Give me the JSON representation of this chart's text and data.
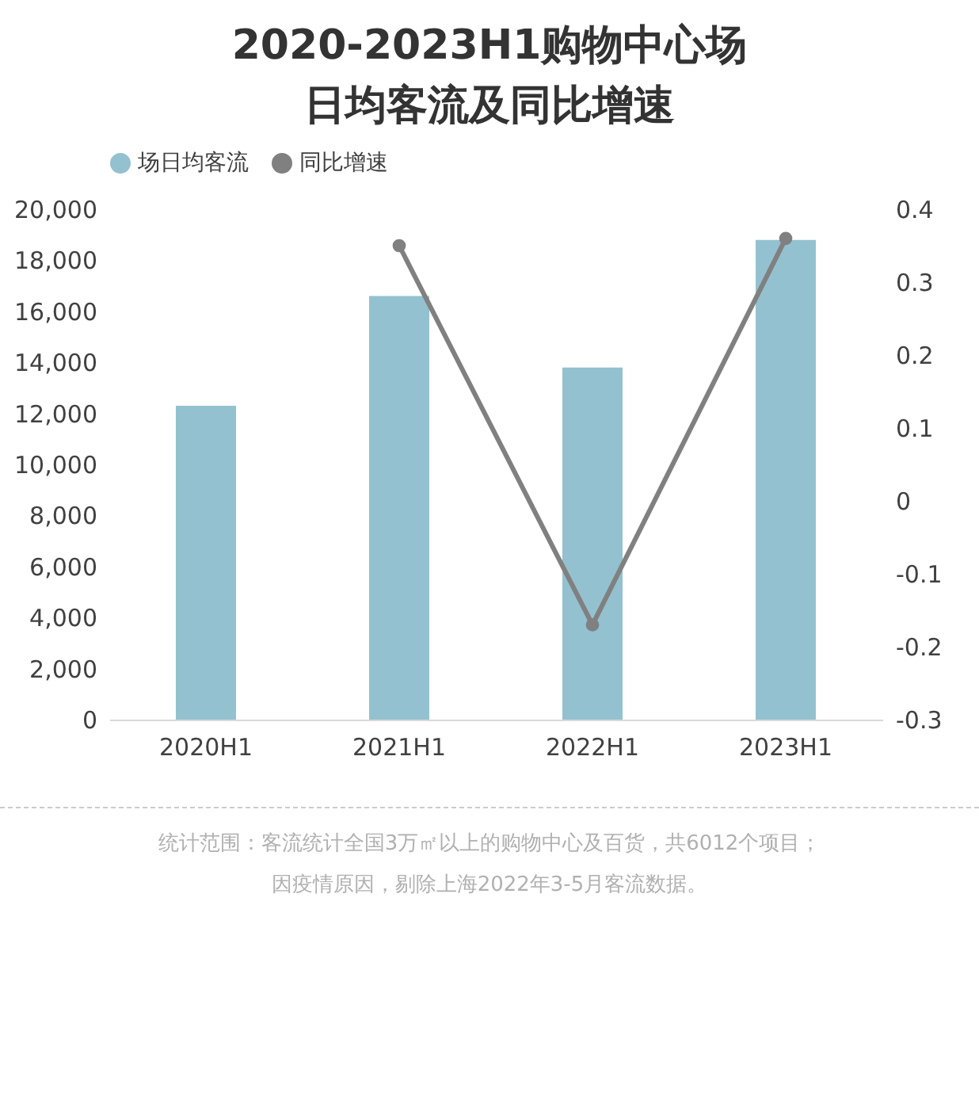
{
  "chart_data": {
    "type": "bar",
    "title": "2020-2023H1购物中心场日均客流及同比增速",
    "categories": [
      "2020H1",
      "2021H1",
      "2022H1",
      "2023H1"
    ],
    "series": [
      {
        "name": "场日均客流",
        "color": "#93c1cf",
        "values": [
          12300,
          16600,
          13800,
          18800
        ]
      },
      {
        "name": "同比增速",
        "type": "line",
        "axis": "y2",
        "color": "#808080",
        "values": [
          null,
          0.35,
          -0.17,
          0.36
        ]
      }
    ],
    "ylim": [
      0,
      20000
    ],
    "yticks": [
      0,
      {
        "value": 2000,
        "label": "2,000"
      },
      {
        "value": 4000,
        "label": "4,000"
      },
      {
        "value": 6000,
        "label": "6,000"
      },
      {
        "value": 8000,
        "label": "8,000"
      },
      {
        "value": 10000,
        "label": "10,000"
      },
      {
        "value": 12000,
        "label": "12,000"
      },
      {
        "value": 14000,
        "label": "14,000"
      },
      {
        "value": 16000,
        "label": "16,000"
      },
      {
        "value": 18000,
        "label": "18,000"
      },
      {
        "value": 20000,
        "label": "20,000"
      }
    ],
    "y2lim": [
      -0.3,
      0.4
    ],
    "y2ticks": [
      -0.3,
      -0.2,
      -0.1,
      0,
      0.1,
      0.2,
      0.3,
      0.4
    ],
    "legend": "top",
    "grid": false,
    "marker": "circle",
    "line_style": "solid",
    "annotations": [
      "统计范围：客流统计全国3万㎡以上的购物中心及百货，共6012个项目；",
      "因疫情原因，剔除上海2022年3-5月客流数据。"
    ]
  }
}
